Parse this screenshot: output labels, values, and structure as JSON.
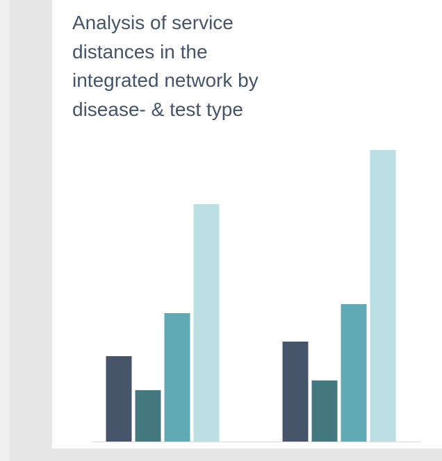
{
  "chart_data": {
    "type": "bar",
    "title": "Analysis of service distances in the integrated network by disease- & test type",
    "categories": [
      null,
      null
    ],
    "series": [
      {
        "color": "#46546a",
        "values": [
          123,
          144
        ]
      },
      {
        "color": "#447a7f",
        "values": [
          74,
          88
        ]
      },
      {
        "color": "#60aab5",
        "values": [
          185,
          198
        ]
      },
      {
        "color": "#bcdfe3",
        "values": [
          342,
          420
        ]
      }
    ],
    "ylim": [
      0,
      440
    ]
  }
}
